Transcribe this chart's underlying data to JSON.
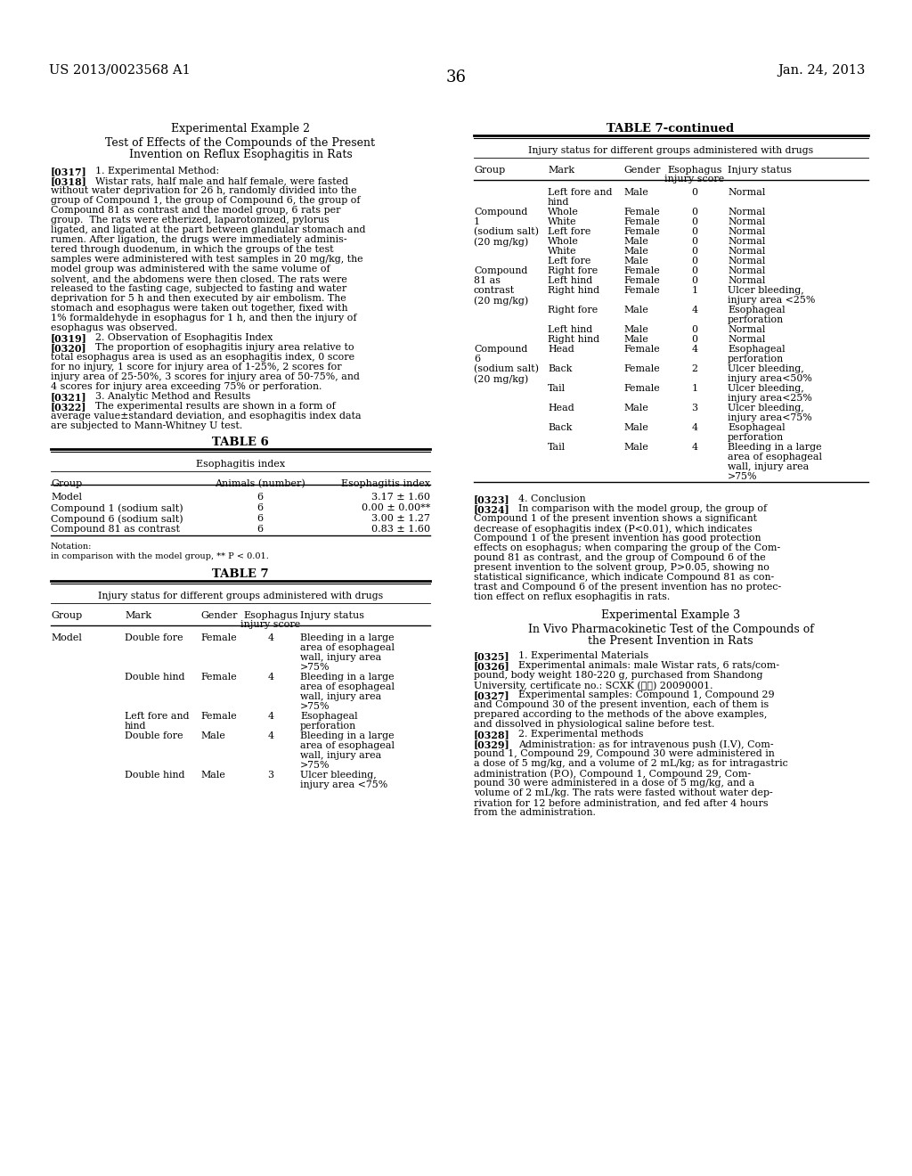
{
  "page_number": "36",
  "patent_number": "US 2013/0023568 A1",
  "patent_date": "Jan. 24, 2013",
  "background_color": "#ffffff"
}
